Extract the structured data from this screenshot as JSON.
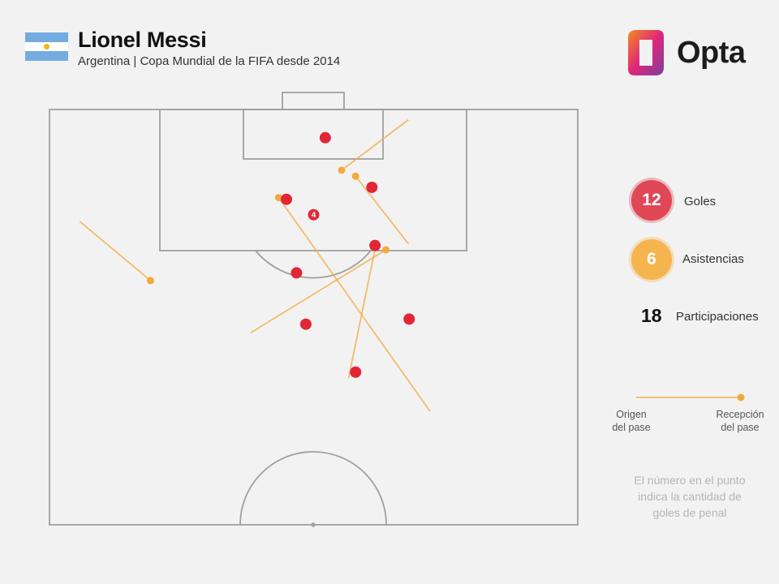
{
  "header": {
    "player_name": "Lionel Messi",
    "subtitle": "Argentina | Copa Mundial de la FIFA desde 2014",
    "flag_colors": [
      "#74acdf",
      "#ffffff",
      "#74acdf"
    ],
    "sun_color": "#f6b40e"
  },
  "logo": {
    "text": "Opta",
    "icon": "opta-logo-icon",
    "gradient": [
      "#f28c1e",
      "#e0267a",
      "#7b3fa0"
    ]
  },
  "stats": {
    "goals": {
      "value": "12",
      "label": "Goles",
      "color": "#e04856"
    },
    "assists": {
      "value": "6",
      "label": "Asistencias",
      "color": "#f5b54e"
    },
    "total": {
      "value": "18",
      "label": "Participaciones"
    }
  },
  "legend": {
    "origin_label_1": "Origen",
    "origin_label_2": "del pase",
    "reception_label_1": "Recepción",
    "reception_label_2": "del pase"
  },
  "note": {
    "line1": "El número en el punto",
    "line2": "indica la cantidad de",
    "line3": "goles de penal"
  },
  "chart_data": {
    "type": "scatter",
    "description_units": "pitch coordinates in metres: x across width (0–68, left touchline = 0), y distance from goal line (0 at goal line)",
    "goals": [
      {
        "x": 35.5,
        "y": 3.3
      },
      {
        "x": 41.5,
        "y": 9.1
      },
      {
        "x": 30.5,
        "y": 10.5
      },
      {
        "x": 34.0,
        "y": 12.3,
        "penalty_goals": 4
      },
      {
        "x": 41.9,
        "y": 15.9
      },
      {
        "x": 31.8,
        "y": 19.1
      },
      {
        "x": 33.0,
        "y": 25.1
      },
      {
        "x": 46.3,
        "y": 24.5
      },
      {
        "x": 39.4,
        "y": 30.7
      }
    ],
    "assists": [
      {
        "from": {
          "x": 46.2,
          "y": 1.2
        },
        "to": {
          "x": 37.6,
          "y": 7.1
        }
      },
      {
        "from": {
          "x": 46.2,
          "y": 15.7
        },
        "to": {
          "x": 39.4,
          "y": 7.8
        }
      },
      {
        "from": {
          "x": 49.0,
          "y": 35.3
        },
        "to": {
          "x": 29.5,
          "y": 10.3
        }
      },
      {
        "from": {
          "x": 25.9,
          "y": 26.1
        },
        "to": {
          "x": 43.3,
          "y": 16.4
        }
      },
      {
        "from": {
          "x": 38.5,
          "y": 31.4
        },
        "to": {
          "x": 42.0,
          "y": 15.9
        }
      },
      {
        "from": {
          "x": 3.9,
          "y": 13.1
        },
        "to": {
          "x": 13.0,
          "y": 20.0
        }
      }
    ],
    "colors": {
      "goal": "#e32636",
      "assist": "#f3a93f"
    },
    "penalty_label": "4"
  }
}
